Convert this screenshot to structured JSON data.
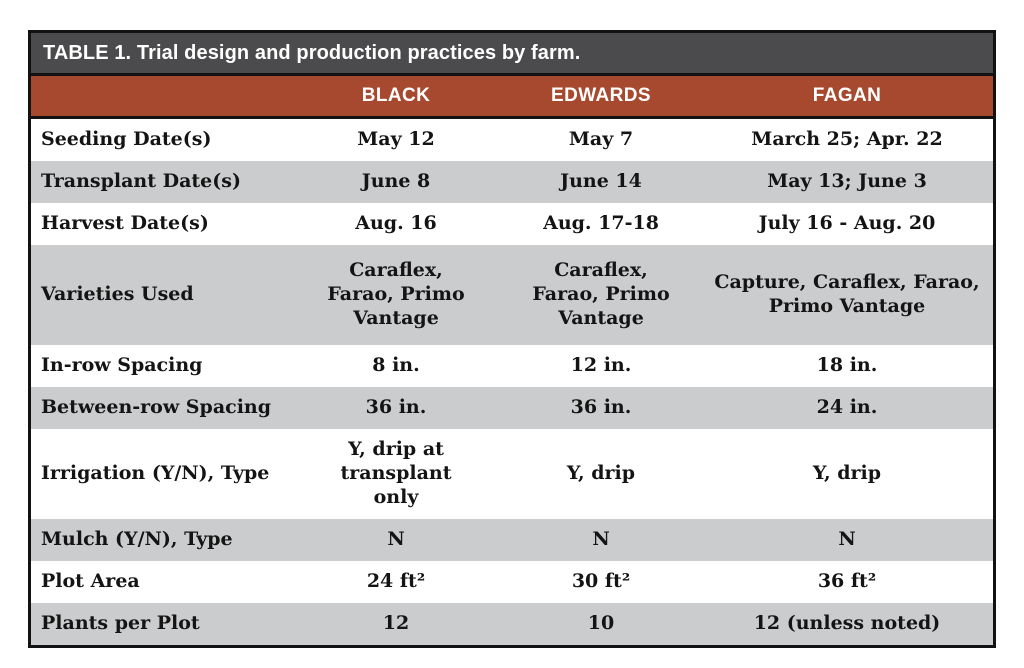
{
  "table": {
    "title": "TABLE 1. Trial design and production practices by farm.",
    "columns": [
      "BLACK",
      "EDWARDS",
      "FAGAN"
    ],
    "rows": [
      {
        "label": "Seeding Date(s)",
        "values": [
          "May 12",
          "May 7",
          "March 25; Apr. 22"
        ]
      },
      {
        "label": "Transplant Date(s)",
        "values": [
          "June 8",
          "June 14",
          "May 13; June 3"
        ]
      },
      {
        "label": "Harvest Date(s)",
        "values": [
          "Aug. 16",
          "Aug. 17-18",
          "July 16 - Aug. 20"
        ]
      },
      {
        "label": "Varieties Used",
        "values": [
          "Caraflex,\nFarao, Primo\nVantage",
          "Caraflex,\nFarao, Primo\nVantage",
          "Capture, Caraflex, Farao,\nPrimo Vantage"
        ]
      },
      {
        "label": "In-row Spacing",
        "values": [
          "8 in.",
          "12 in.",
          "18 in."
        ]
      },
      {
        "label": "Between-row Spacing",
        "values": [
          "36 in.",
          "36 in.",
          "24 in."
        ]
      },
      {
        "label": "Irrigation (Y/N), Type",
        "values": [
          "Y, drip at\ntransplant\nonly",
          "Y, drip",
          "Y, drip"
        ]
      },
      {
        "label": "Mulch (Y/N), Type",
        "values": [
          "N",
          "N",
          "N"
        ]
      },
      {
        "label": "Plot Area",
        "values": [
          "24 ft²",
          "30 ft²",
          "36 ft²"
        ]
      },
      {
        "label": "Plants per Plot",
        "values": [
          "12",
          "10",
          "12 (unless noted)"
        ]
      }
    ],
    "colors": {
      "title_bar": "#4b4b4d",
      "header_row": "#a6492f",
      "stripe_gray": "#cbccce",
      "border": "#121212",
      "text": "#141414"
    }
  }
}
